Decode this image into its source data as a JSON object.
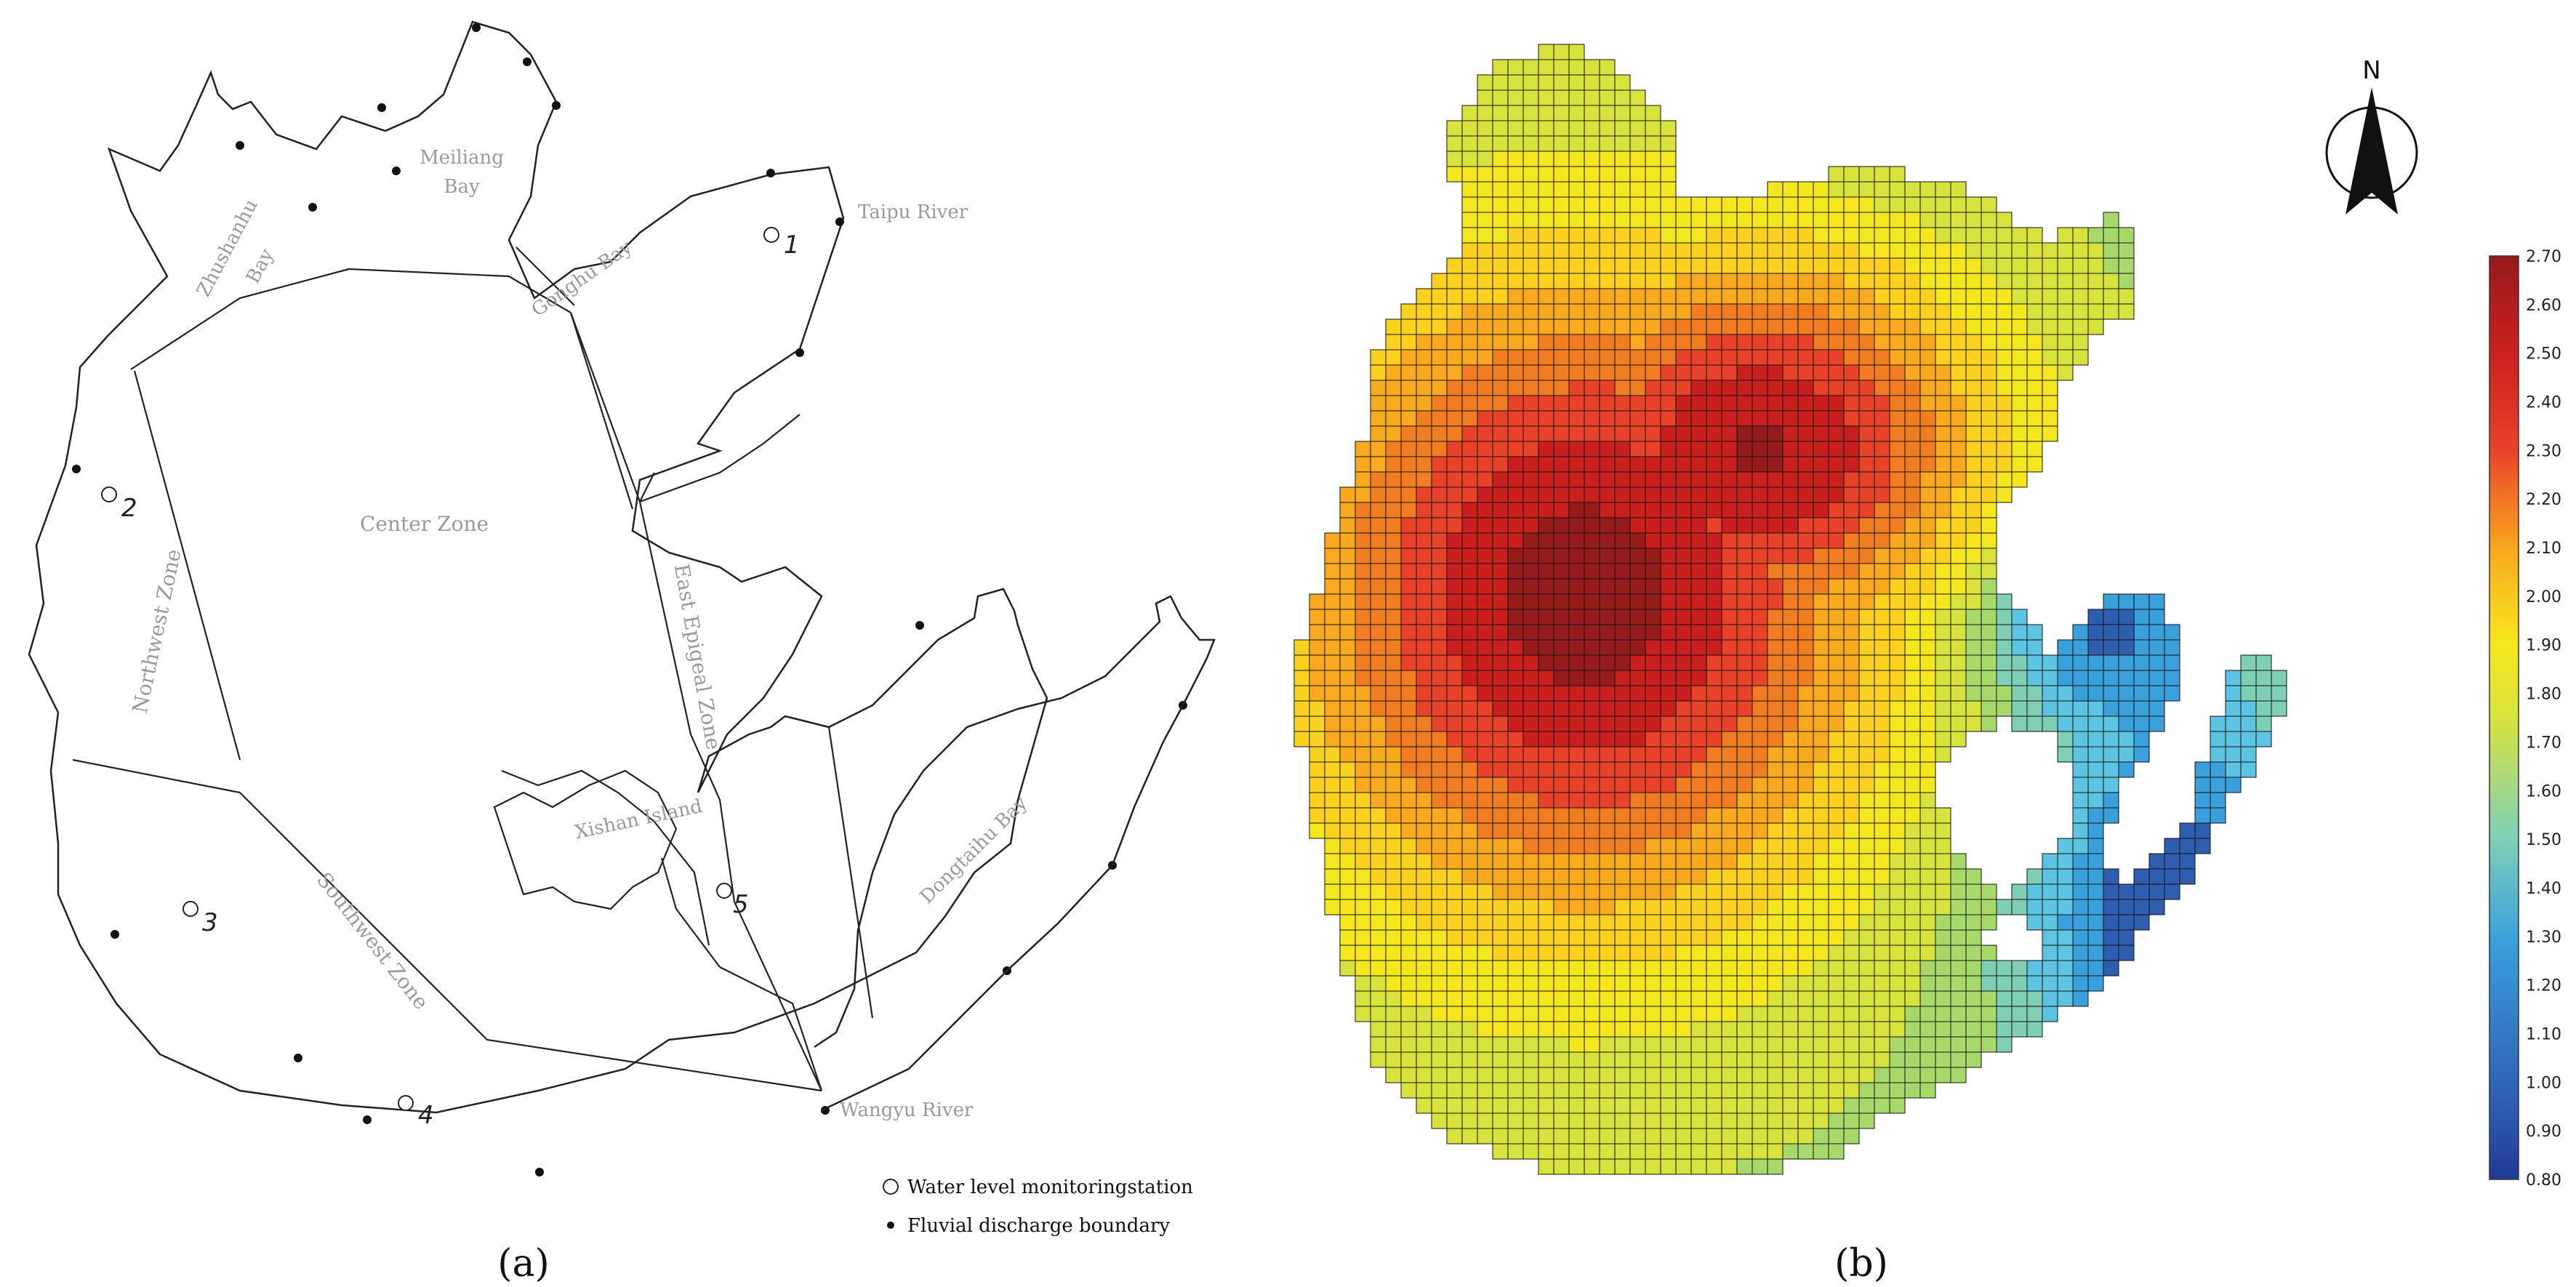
{
  "panel_a": {
    "label": "(a)",
    "zones": {
      "center": "Center Zone",
      "northwest": "Northwest Zone",
      "southwest": "Southwest Zone",
      "east_epigeal": "East Epigeal Zone"
    },
    "places": {
      "meiliang_line1": "Meiliang",
      "meiliang_line2": "Bay",
      "zhushanhu_line1": "Zhushanhu",
      "zhushanhu_line2": "Bay",
      "gonghu": "Gonghu Bay",
      "taipu": "Taipu River",
      "xishan": "Xishan Island",
      "dongtaihu": "Dongtaihu Bay",
      "wangyu": "Wangyu River"
    },
    "stations": [
      "1",
      "2",
      "3",
      "4",
      "5"
    ],
    "legend": {
      "station": "Water level monitoringstation",
      "boundary": "Fluvial discharge boundary"
    }
  },
  "panel_b": {
    "label": "(b)",
    "north": "N",
    "colorbar_ticks": [
      "2.70",
      "2.60",
      "2.50",
      "2.40",
      "2.30",
      "2.20",
      "2.10",
      "2.00",
      "1.90",
      "1.80",
      "1.70",
      "1.60",
      "1.50",
      "1.40",
      "1.30",
      "1.20",
      "1.10",
      "1.00",
      "0.90",
      "0.80"
    ],
    "colorbar_min": 0.8,
    "colorbar_max": 2.7,
    "colormap": [
      "#1f3c98",
      "#2f5db0",
      "#3aa0dc",
      "#5cc3e0",
      "#7fcfb6",
      "#a6d96a",
      "#d7e33c",
      "#f5e71e",
      "#fbd11f",
      "#f8a91d",
      "#f07d22",
      "#e8432a",
      "#c9201f",
      "#961b1b"
    ],
    "grid_color": "#111111"
  }
}
